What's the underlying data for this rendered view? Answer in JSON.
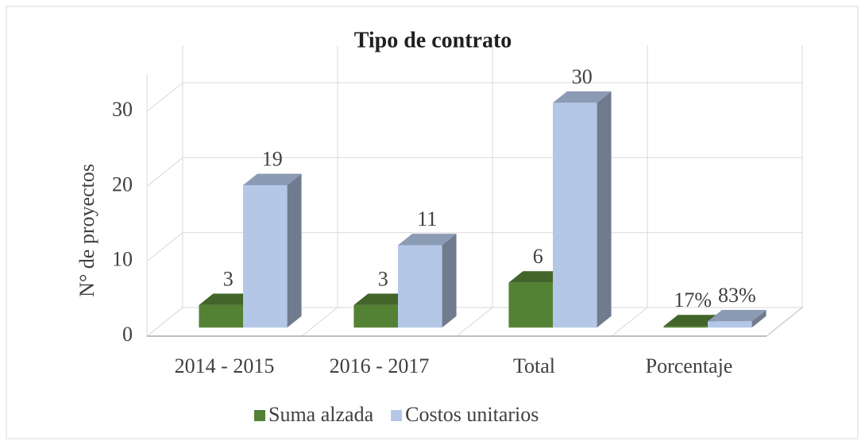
{
  "chart_data": {
    "type": "bar3d",
    "title": "Tipo de contrato",
    "y_label": "N° de  proyectos",
    "categories": [
      "2014 - 2015",
      "2016 - 2017",
      "Total",
      "Porcentaje"
    ],
    "series": [
      {
        "name": "Suma alzada",
        "color": "#548235",
        "values": [
          3,
          3,
          6,
          0.17
        ],
        "value_labels": [
          "3",
          "3",
          "6",
          "17%"
        ]
      },
      {
        "name": "Costos unitarios",
        "color": "#b4c7e7",
        "values": [
          19,
          11,
          30,
          0.83
        ],
        "value_labels": [
          "19",
          "11",
          "30",
          "83%"
        ]
      }
    ],
    "ylim": [
      0,
      35
    ],
    "yticks": [
      0,
      10,
      20,
      30
    ],
    "grid": true,
    "legend": "bottom"
  }
}
